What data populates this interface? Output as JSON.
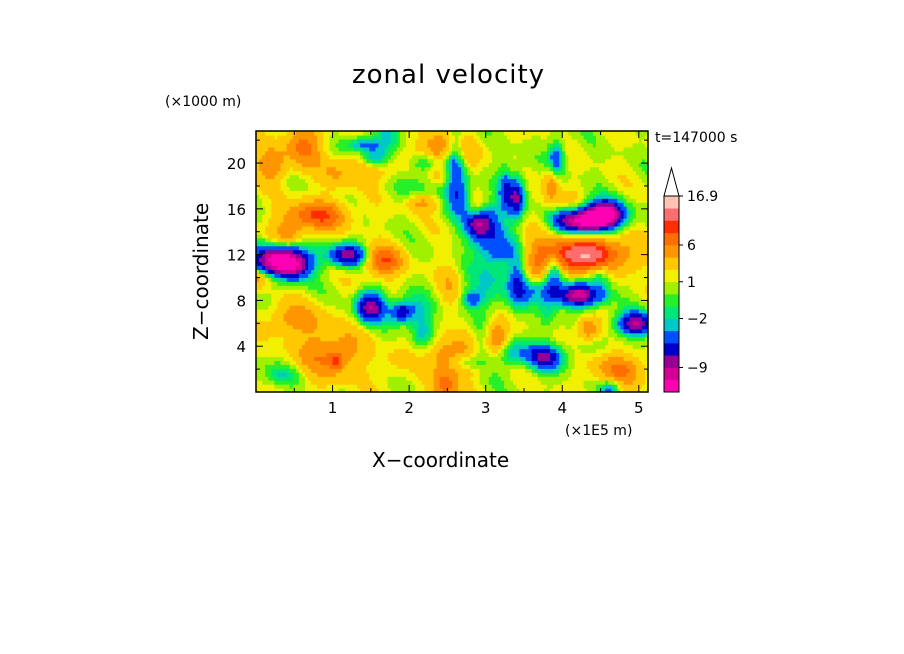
{
  "chart_data": {
    "type": "heatmap",
    "title": "zonal velocity",
    "xlabel": "X−coordinate",
    "ylabel": "Z−coordinate",
    "x_unit": "(×1E5 m)",
    "y_unit": "(×1000 m)",
    "time_label": "t=147000 s",
    "xlim": [
      0,
      5.12
    ],
    "ylim": [
      0,
      22.8
    ],
    "x_ticks": [
      1,
      2,
      3,
      4,
      5
    ],
    "y_ticks": [
      4,
      8,
      12,
      16,
      20
    ],
    "colorbar": {
      "labels": [
        16.9,
        6,
        1,
        -2,
        -9
      ],
      "levels": [
        -13,
        -11,
        -9,
        -7,
        -5,
        -3,
        -2,
        -1,
        0,
        1,
        2,
        4,
        6,
        8,
        10,
        12.5,
        16.9
      ],
      "colors": [
        "#ff00b4",
        "#d40096",
        "#960096",
        "#0000c8",
        "#0050ff",
        "#00c8c8",
        "#00e678",
        "#28f028",
        "#a0f000",
        "#f0f000",
        "#ffc800",
        "#ff9600",
        "#ff6e00",
        "#ff2d00",
        "#ff6e6e",
        "#ffc3b4"
      ],
      "extend": "max"
    },
    "grid": false,
    "legend": "colorbar-right"
  }
}
